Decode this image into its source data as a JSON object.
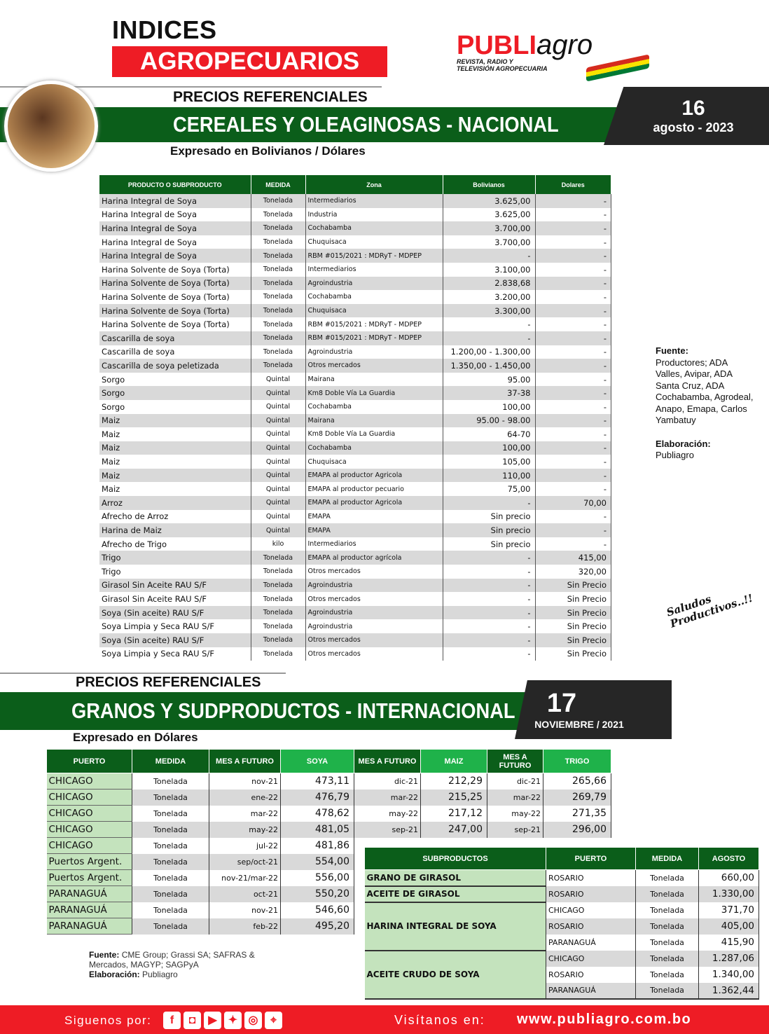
{
  "header": {
    "title_line1": "INDICES",
    "title_line2": "AGROPECUARIOS",
    "logo_text_red": "PUBLI",
    "logo_text_script": "agro",
    "logo_tagline1": "REVISTA, RADIO Y",
    "logo_tagline2": "TELEVISIÓN AGROPECUARIA"
  },
  "section1": {
    "kicker": "PRECIOS REFERENCIALES",
    "title": "CEREALES Y OLEAGINOSAS - NACIONAL",
    "subtitle": "Expresado en Bolivianos / Dólares",
    "date_day": "16",
    "date_rest": "agosto - 2023",
    "columns": [
      "PRODUCTO O SUBPRODUCTO",
      "MEDIDA",
      "Zona",
      "Bolivianos",
      "Dolares"
    ],
    "rows": [
      [
        "Harina Integral de Soya",
        "Tonelada",
        "Intermediarios",
        "3.625,00",
        "-"
      ],
      [
        "Harina Integral de Soya",
        "Tonelada",
        "Industria",
        "3.625,00",
        "-"
      ],
      [
        "Harina Integral de Soya",
        "Tonelada",
        "Cochabamba",
        "3.700,00",
        "-"
      ],
      [
        "Harina Integral de Soya",
        "Tonelada",
        "Chuquisaca",
        "3.700,00",
        "-"
      ],
      [
        "Harina Integral de Soya",
        "Tonelada",
        "RBM #015/2021 : MDRyT - MDPEP",
        "-",
        "-"
      ],
      [
        "Harina Solvente de Soya (Torta)",
        "Tonelada",
        "Intermediarios",
        "3.100,00",
        "-"
      ],
      [
        "Harina Solvente de Soya (Torta)",
        "Tonelada",
        "Agroindustria",
        "2.838,68",
        "-"
      ],
      [
        "Harina Solvente de Soya (Torta)",
        "Tonelada",
        "Cochabamba",
        "3.200,00",
        "-"
      ],
      [
        "Harina Solvente de Soya (Torta)",
        "Tonelada",
        "Chuquisaca",
        "3.300,00",
        "-"
      ],
      [
        "Harina Solvente de Soya (Torta)",
        "Tonelada",
        "RBM #015/2021 : MDRyT - MDPEP",
        "-",
        "-"
      ],
      [
        "Cascarilla de soya",
        "Tonelada",
        "RBM #015/2021 : MDRyT - MDPEP",
        "-",
        "-"
      ],
      [
        "Cascarilla de soya",
        "Tonelada",
        "Agroindustria",
        "1.200,00 - 1.300,00",
        "-"
      ],
      [
        "Cascarilla de soya peletizada",
        "Tonelada",
        "Otros mercados",
        "1.350,00 - 1.450,00",
        "-"
      ],
      [
        "Sorgo",
        "Quintal",
        "Mairana",
        "95.00",
        "-"
      ],
      [
        "Sorgo",
        "Quintal",
        "Km8 Doble Vía La Guardia",
        "37-38",
        "-"
      ],
      [
        "Sorgo",
        "Quintal",
        "Cochabamba",
        "100,00",
        "-"
      ],
      [
        "Maiz",
        "Quintal",
        "Mairana",
        "95.00 - 98.00",
        "-"
      ],
      [
        "Maiz",
        "Quintal",
        "Km8 Doble Vía La Guardia",
        "64-70",
        "-"
      ],
      [
        "Maiz",
        "Quintal",
        "Cochabamba",
        "100,00",
        "-"
      ],
      [
        "Maiz",
        "Quintal",
        "Chuquisaca",
        "105,00",
        "-"
      ],
      [
        "Maiz",
        "Quintal",
        "EMAPA al productor Agricola",
        "110,00",
        "-"
      ],
      [
        "Maiz",
        "Quintal",
        "EMAPA al productor pecuario",
        "75,00",
        "-"
      ],
      [
        "Arroz",
        "Quintal",
        "EMAPA al productor Agricola",
        "-",
        "70,00"
      ],
      [
        "Afrecho de Arroz",
        "Quintal",
        "EMAPA",
        "Sin precio",
        "-"
      ],
      [
        "Harina de Maiz",
        "Quintal",
        "EMAPA",
        "Sin precio",
        "-"
      ],
      [
        "Afrecho de Trigo",
        "kilo",
        "Intermediarios",
        "Sin precio",
        "-"
      ],
      [
        "Trigo",
        "Tonelada",
        "EMAPA al productor agrícola",
        "-",
        "415,00"
      ],
      [
        "Trigo",
        "Tonelada",
        "Otros mercados",
        "-",
        "320,00"
      ],
      [
        "Girasol Sin Aceite RAU S/F",
        "Tonelada",
        "Agroindustria",
        "-",
        "Sin Precio"
      ],
      [
        "Girasol Sin Aceite RAU S/F",
        "Tonelada",
        "Otros mercados",
        "-",
        "Sin Precio"
      ],
      [
        "Soya (Sin aceite) RAU S/F",
        "Tonelada",
        "Agroindustria",
        "-",
        "Sin Precio"
      ],
      [
        "Soya Limpia y Seca RAU S/F",
        "Tonelada",
        "Agroindustria",
        "-",
        "Sin Precio"
      ],
      [
        "Soya (Sin aceite) RAU S/F",
        "Tonelada",
        "Otros mercados",
        "-",
        "Sin Precio"
      ],
      [
        "Soya Limpia y Seca RAU S/F",
        "Tonelada",
        "Otros mercados",
        "-",
        "Sin Precio"
      ]
    ]
  },
  "side": {
    "fuente_label": "Fuente:",
    "fuente_text": "Productores; ADA Valles, Avipar, ADA Santa Cruz, ADA Cochabamba, Agrodeal, Anapo, Emapa, Carlos Yambatuy",
    "elab_label": "Elaboración:",
    "elab_text": "Publiagro",
    "saludos": "Saludos Productivos..!!"
  },
  "section2": {
    "kicker": "PRECIOS REFERENCIALES",
    "title": "GRANOS Y SUDPRODUCTOS - INTERNACIONAL",
    "subtitle": "Expresado en Dólares",
    "date_day": "17",
    "date_rest": "NOVIEMBRE / 2021",
    "columns": [
      "PUERTO",
      "MEDIDA",
      "MES A FUTURO",
      "SOYA",
      "MES A FUTURO",
      "MAIZ",
      "MES A FUTURO",
      "TRIGO"
    ],
    "rows": [
      [
        "CHICAGO",
        "Tonelada",
        "nov-21",
        "473,11",
        "dic-21",
        "212,29",
        "dic-21",
        "265,66"
      ],
      [
        "CHICAGO",
        "Tonelada",
        "ene-22",
        "476,79",
        "mar-22",
        "215,25",
        "mar-22",
        "269,79"
      ],
      [
        "CHICAGO",
        "Tonelada",
        "mar-22",
        "478,62",
        "may-22",
        "217,12",
        "may-22",
        "271,35"
      ],
      [
        "CHICAGO",
        "Tonelada",
        "may-22",
        "481,05",
        "sep-21",
        "247,00",
        "sep-21",
        "296,00"
      ],
      [
        "CHICAGO",
        "Tonelada",
        "jul-22",
        "481,86"
      ],
      [
        "Puertos Argent.",
        "Tonelada",
        "sep/oct-21",
        "554,00"
      ],
      [
        "Puertos Argent.",
        "Tonelada",
        "nov-21/mar-22",
        "556,00"
      ],
      [
        "PARANAGUÁ",
        "Tonelada",
        "oct-21",
        "550,20"
      ],
      [
        "PARANAGUÁ",
        "Tonelada",
        "nov-21",
        "546,60"
      ],
      [
        "PARANAGUÁ",
        "Tonelada",
        "feb-22",
        "495,20"
      ]
    ],
    "sub_columns": [
      "SUBPRODUCTOS",
      "PUERTO",
      "MEDIDA",
      "AGOSTO"
    ],
    "sub_groups": [
      {
        "name": "GRANO DE GIRASOL",
        "rows": [
          [
            "ROSARIO",
            "Tonelada",
            "660,00"
          ]
        ]
      },
      {
        "name": "ACEITE DE GIRASOL",
        "rows": [
          [
            "ROSARIO",
            "Tonelada",
            "1.330,00"
          ]
        ]
      },
      {
        "name": "HARINA INTEGRAL DE SOYA",
        "rows": [
          [
            "CHICAGO",
            "Tonelada",
            "371,70"
          ],
          [
            "ROSARIO",
            "Tonelada",
            "405,00"
          ],
          [
            "PARANAGUÁ",
            "Tonelada",
            "415,90"
          ]
        ]
      },
      {
        "name": "ACEITE CRUDO DE SOYA",
        "rows": [
          [
            "CHICAGO",
            "Tonelada",
            "1.287,06"
          ],
          [
            "ROSARIO",
            "Tonelada",
            "1.340,00"
          ],
          [
            "PARANAGUÁ",
            "Tonelada",
            "1.362,44"
          ]
        ]
      }
    ],
    "fuente_label": "Fuente:",
    "fuente_text": "CME Group; Grassi SA; SAFRAS & Mercados, MAGYP; SAGPyA",
    "elab_label": "Elaboración:",
    "elab_text": "Publiagro"
  },
  "footer": {
    "follow": "Siguenos por:",
    "visit": "Visítanos en:",
    "url": "www.publiagro.com.bo",
    "social_icons": [
      "facebook-icon",
      "instagram-icon",
      "youtube-icon",
      "twitter-icon",
      "radio-icon",
      "location-icon"
    ]
  },
  "colors": {
    "green": "#0b5e1a",
    "light_green": "#1fb24a",
    "red": "#ee1c25",
    "dark": "#262626",
    "pale_green": "#c4e3bd"
  }
}
